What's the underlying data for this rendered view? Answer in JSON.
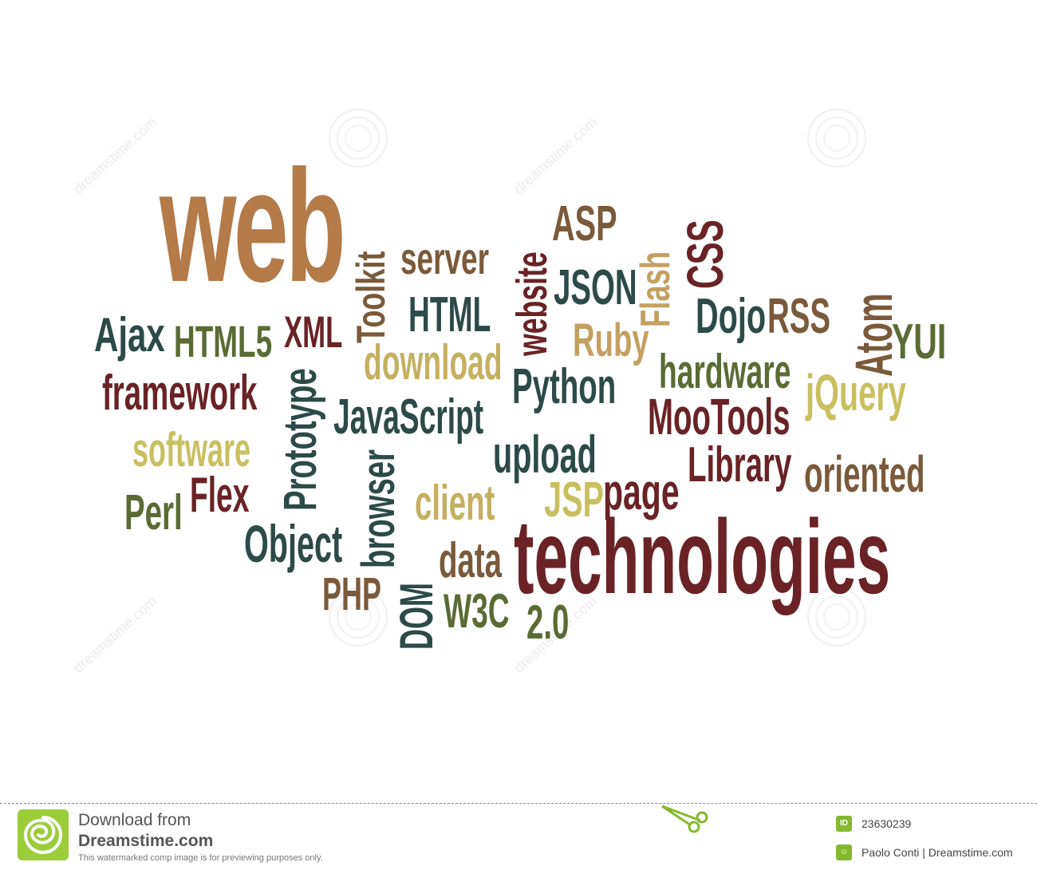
{
  "words": [
    {
      "text": "web",
      "color": "#b47a48"
    },
    {
      "text": "Toolkit",
      "color": "#7a5a3c"
    },
    {
      "text": "server",
      "color": "#7a5a3c"
    },
    {
      "text": "website",
      "color": "#6a2226"
    },
    {
      "text": "ASP",
      "color": "#7a5a3c"
    },
    {
      "text": "Flash",
      "color": "#c4a060"
    },
    {
      "text": "CSS",
      "color": "#6a2226"
    },
    {
      "text": "JSON",
      "color": "#2d4a48"
    },
    {
      "text": "HTML",
      "color": "#2d4a48"
    },
    {
      "text": "Ajax",
      "color": "#2d4a48"
    },
    {
      "text": "HTML5",
      "color": "#5a6b34"
    },
    {
      "text": "XML",
      "color": "#6a2226"
    },
    {
      "text": "Dojo",
      "color": "#2d4a48"
    },
    {
      "text": "RSS",
      "color": "#7a5a3c"
    },
    {
      "text": "Atom",
      "color": "#7a5a3c"
    },
    {
      "text": "YUI",
      "color": "#5a6b34"
    },
    {
      "text": "Ruby",
      "color": "#c4a060"
    },
    {
      "text": "download",
      "color": "#c4b060"
    },
    {
      "text": "hardware",
      "color": "#5a6b34"
    },
    {
      "text": "framework",
      "color": "#6a2226"
    },
    {
      "text": "Prototype",
      "color": "#2d4a48"
    },
    {
      "text": "Python",
      "color": "#2d4a48"
    },
    {
      "text": "jQuery",
      "color": "#c8c060"
    },
    {
      "text": "JavaScript",
      "color": "#2d4a48"
    },
    {
      "text": "MooTools",
      "color": "#6a2226"
    },
    {
      "text": "software",
      "color": "#c8c060"
    },
    {
      "text": "browser",
      "color": "#2d4a48"
    },
    {
      "text": "upload",
      "color": "#2d4a48"
    },
    {
      "text": "Library",
      "color": "#6a2226"
    },
    {
      "text": "oriented",
      "color": "#7a5a3c"
    },
    {
      "text": "Flex",
      "color": "#6a2226"
    },
    {
      "text": "Perl",
      "color": "#5a6b34"
    },
    {
      "text": "client",
      "color": "#c4b060"
    },
    {
      "text": "JSP",
      "color": "#c8c060"
    },
    {
      "text": "page",
      "color": "#6a2226"
    },
    {
      "text": "Object",
      "color": "#2d4a48"
    },
    {
      "text": "technologies",
      "color": "#6a2226"
    },
    {
      "text": "data",
      "color": "#7a5a3c"
    },
    {
      "text": "PHP",
      "color": "#7a5a3c"
    },
    {
      "text": "DOM",
      "color": "#2d4a48"
    },
    {
      "text": "W3C",
      "color": "#5a6b34"
    },
    {
      "text": "2.0",
      "color": "#5a6b34"
    }
  ],
  "watermark_text": "dreamstime.com",
  "footer": {
    "download_from": "Download from",
    "site": "Dreamstime.com",
    "note": "This watermarked comp image is for previewing purposes only.",
    "id_icon": "ID",
    "image_id": "23630239",
    "author": "Paolo Conti | Dreamstime.com",
    "logo_color": "#9ccc3a"
  }
}
